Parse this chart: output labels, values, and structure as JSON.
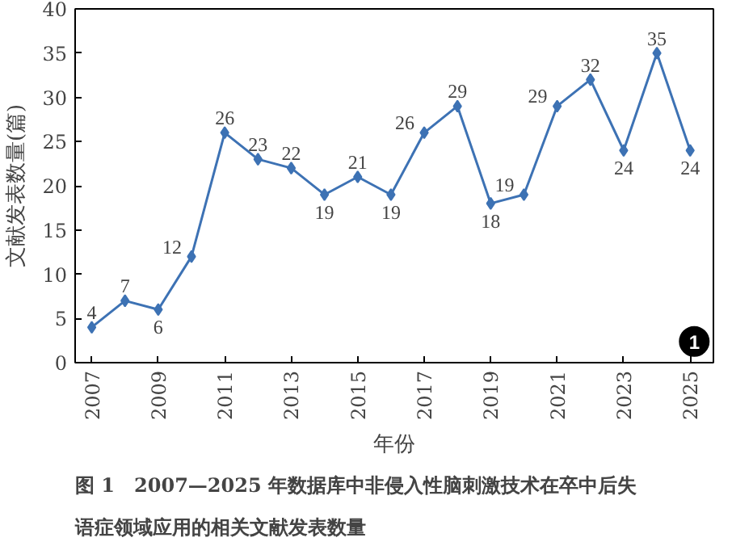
{
  "chart_data": {
    "type": "line",
    "title": "图 1　2007—2025 年数据库中非侵入性脑刺激技术在卒中后失语症领域应用的相关文献发表数量",
    "xlabel": "年份",
    "ylabel": "文献发表数量(篇)",
    "x": [
      2007,
      2008,
      2009,
      2010,
      2011,
      2012,
      2013,
      2014,
      2015,
      2016,
      2017,
      2018,
      2019,
      2020,
      2021,
      2022,
      2023,
      2024,
      2025
    ],
    "series": [
      {
        "color": "#3d72b4",
        "values": [
          4,
          7,
          6,
          12,
          26,
          23,
          22,
          19,
          21,
          19,
          26,
          29,
          18,
          19,
          29,
          32,
          24,
          35,
          24
        ]
      }
    ],
    "xlim": [
      2006.5,
      2025.7
    ],
    "xticks": [
      2007,
      2009,
      2011,
      2013,
      2015,
      2017,
      2019,
      2021,
      2023,
      2025
    ],
    "ylim": [
      0,
      40
    ],
    "yticks": [
      0,
      5,
      10,
      15,
      20,
      25,
      30,
      35,
      40
    ],
    "grid": false,
    "marker": "diamond",
    "line_style": "solid",
    "data_labels": true,
    "annotations": [
      "1"
    ]
  }
}
